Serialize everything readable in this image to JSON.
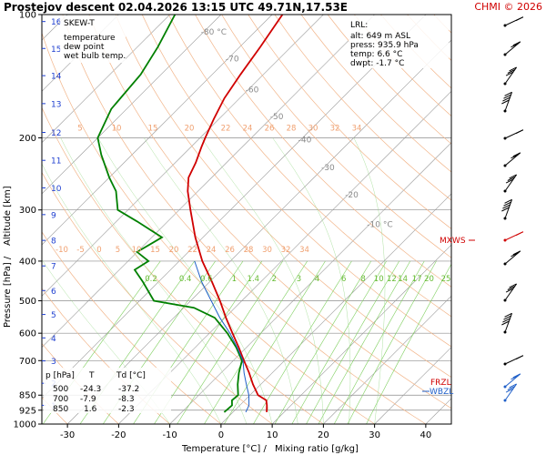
{
  "header": {
    "title": "Prostejov   descent   02.04.2026 13:15 UTC  49.71N,17.53E",
    "credit": "CHMI © 2026"
  },
  "legend": {
    "heading": "SKEW-T",
    "items": [
      {
        "label": "temperature",
        "color": "#d00000"
      },
      {
        "label": "dew point",
        "color": "#008000"
      },
      {
        "label": "wet bulb temp.",
        "color": "#1f5fc8"
      }
    ]
  },
  "lrl": {
    "heading": "LRL:",
    "alt": "alt: 649 m ASL",
    "press": "press: 935.9 hPa",
    "temp": "temp: 6.6 °C",
    "dwpt": "dwpt: -1.7 °C",
    "colors": {
      "alt": "#1f3fd0",
      "press": "#000000",
      "temp": "#d00000",
      "dwpt": "#008000"
    }
  },
  "table": {
    "header": [
      "p [hPa]",
      "T",
      "Td [°C]"
    ],
    "rows": [
      [
        "500",
        "-24.3",
        "-37.2"
      ],
      [
        "700",
        "-7.9",
        "-8.3"
      ],
      [
        "850",
        "1.6",
        "-2.3"
      ]
    ]
  },
  "labels": {
    "mxws": "MXWS",
    "wbzl": "WBZL",
    "frzl": "FRZL"
  },
  "chart_data": {
    "type": "line",
    "xlabel": "Temperature [°C]  /",
    "xlabel2": "Mixing ratio [g/kg]",
    "ylabel": "Pressure [hPa]  /",
    "ylabel2": "Altitude [km]",
    "xlim": [
      -35,
      45
    ],
    "ylim": [
      1000,
      100
    ],
    "y_log": true,
    "x_ticks": [
      -30,
      -20,
      -10,
      0,
      10,
      20,
      30,
      40
    ],
    "pressure_ticks": [
      100,
      200,
      300,
      400,
      500,
      600,
      700,
      850,
      925,
      1000
    ],
    "altitude_ticks": [
      {
        "km": "1",
        "p": 900
      },
      {
        "km": "2",
        "p": 795
      },
      {
        "km": "3",
        "p": 701
      },
      {
        "km": "4",
        "p": 616
      },
      {
        "km": "5",
        "p": 540
      },
      {
        "km": "6",
        "p": 472
      },
      {
        "km": "7",
        "p": 411
      },
      {
        "km": "8",
        "p": 356
      },
      {
        "km": "9",
        "p": 308
      },
      {
        "km": "10",
        "p": 265
      },
      {
        "km": "11",
        "p": 227
      },
      {
        "km": "12",
        "p": 194
      },
      {
        "km": "13",
        "p": 165
      },
      {
        "km": "14",
        "p": 141
      },
      {
        "km": "15",
        "p": 121
      },
      {
        "km": "16",
        "p": 104
      }
    ],
    "isotherm_labels": [
      {
        "t": "-80 °C",
        "p": 112
      },
      {
        "t": "-70",
        "p": 130
      },
      {
        "t": "-60",
        "p": 155
      },
      {
        "t": "-50",
        "p": 180
      },
      {
        "t": "-40",
        "p": 205
      },
      {
        "t": "-30",
        "p": 240
      },
      {
        "t": "-20",
        "p": 280
      },
      {
        "t": "-10 °C",
        "p": 330
      }
    ],
    "dry_adiabat_labels": [
      "-10",
      "-5",
      "0",
      "5",
      "10",
      "15",
      "20",
      "22",
      "24",
      "26",
      "28",
      "30",
      "32",
      "34"
    ],
    "dry_adiabat_labels_upper": [
      "5",
      "10",
      "15",
      "20",
      "22",
      "24",
      "26",
      "28",
      "30",
      "32",
      "34"
    ],
    "mixing_ratio_labels": [
      "0.2",
      "0.4",
      "0.6",
      "1",
      "1.4",
      "2",
      "3",
      "4",
      "6",
      "8",
      "10",
      "12",
      "14",
      "17",
      "20",
      "25"
    ],
    "series": [
      {
        "name": "temperature",
        "color": "#d00000",
        "points": [
          {
            "p": 935,
            "t": 6.6
          },
          {
            "p": 900,
            "t": 5.3
          },
          {
            "p": 875,
            "t": 4.2
          },
          {
            "p": 850,
            "t": 1.6
          },
          {
            "p": 800,
            "t": -1.5
          },
          {
            "p": 750,
            "t": -4.5
          },
          {
            "p": 700,
            "t": -7.9
          },
          {
            "p": 650,
            "t": -11.5
          },
          {
            "p": 600,
            "t": -15.5
          },
          {
            "p": 550,
            "t": -19.8
          },
          {
            "p": 500,
            "t": -24.3
          },
          {
            "p": 450,
            "t": -29.5
          },
          {
            "p": 400,
            "t": -35.5
          },
          {
            "p": 350,
            "t": -41.5
          },
          {
            "p": 300,
            "t": -47.8
          },
          {
            "p": 270,
            "t": -52
          },
          {
            "p": 250,
            "t": -54.5
          },
          {
            "p": 230,
            "t": -56
          },
          {
            "p": 210,
            "t": -58
          },
          {
            "p": 200,
            "t": -59
          },
          {
            "p": 180,
            "t": -61
          },
          {
            "p": 160,
            "t": -63
          },
          {
            "p": 140,
            "t": -64.5
          },
          {
            "p": 120,
            "t": -66
          },
          {
            "p": 100,
            "t": -68
          }
        ]
      },
      {
        "name": "dew point",
        "color": "#008000",
        "points": [
          {
            "p": 935,
            "t": -1.7
          },
          {
            "p": 900,
            "t": -1.5
          },
          {
            "p": 875,
            "t": -2.5
          },
          {
            "p": 850,
            "t": -2.3
          },
          {
            "p": 800,
            "t": -4.5
          },
          {
            "p": 750,
            "t": -6.5
          },
          {
            "p": 700,
            "t": -8.3
          },
          {
            "p": 650,
            "t": -12
          },
          {
            "p": 600,
            "t": -16.5
          },
          {
            "p": 550,
            "t": -22
          },
          {
            "p": 520,
            "t": -28
          },
          {
            "p": 500,
            "t": -37.2
          },
          {
            "p": 450,
            "t": -43
          },
          {
            "p": 420,
            "t": -47
          },
          {
            "p": 400,
            "t": -46
          },
          {
            "p": 380,
            "t": -50
          },
          {
            "p": 350,
            "t": -48
          },
          {
            "p": 320,
            "t": -56
          },
          {
            "p": 300,
            "t": -62
          },
          {
            "p": 270,
            "t": -66
          },
          {
            "p": 250,
            "t": -70
          },
          {
            "p": 220,
            "t": -76
          },
          {
            "p": 200,
            "t": -80
          },
          {
            "p": 170,
            "t": -83
          },
          {
            "p": 140,
            "t": -84
          },
          {
            "p": 120,
            "t": -86
          },
          {
            "p": 100,
            "t": -89
          }
        ]
      },
      {
        "name": "wet bulb temp.",
        "color": "#1f5fc8",
        "points": [
          {
            "p": 935,
            "t": 2.5
          },
          {
            "p": 900,
            "t": 1.8
          },
          {
            "p": 850,
            "t": -0.2
          },
          {
            "p": 800,
            "t": -2.8
          },
          {
            "p": 750,
            "t": -5.5
          },
          {
            "p": 700,
            "t": -8.1
          },
          {
            "p": 650,
            "t": -11.8
          },
          {
            "p": 600,
            "t": -16
          },
          {
            "p": 550,
            "t": -21
          },
          {
            "p": 500,
            "t": -26
          },
          {
            "p": 450,
            "t": -31.5
          },
          {
            "p": 400,
            "t": -37
          }
        ]
      }
    ]
  }
}
